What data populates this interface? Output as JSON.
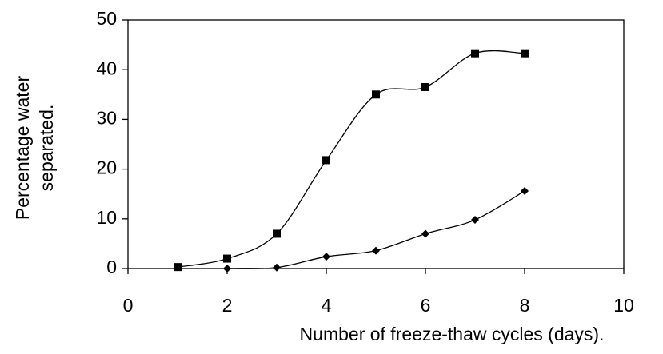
{
  "chart_data": {
    "type": "line",
    "xlabel": "Number of freeze-thaw cycles (days).",
    "ylabel": [
      "Percentage water",
      "separated."
    ],
    "x": [
      1,
      2,
      3,
      4,
      5,
      6,
      7,
      8
    ],
    "series": [
      {
        "marker": "square",
        "color": "#000000",
        "values": [
          0.3,
          2,
          7,
          21.8,
          35,
          36.5,
          43.3,
          43.3
        ]
      },
      {
        "marker": "diamond",
        "color": "#000000",
        "values": [
          null,
          0,
          0.2,
          2.4,
          3.6,
          7,
          9.8,
          15.6
        ]
      }
    ],
    "xlim": [
      0,
      10
    ],
    "xticks": [
      0,
      2,
      4,
      6,
      8,
      10
    ],
    "ylim": [
      0,
      50
    ],
    "yticks": [
      0,
      10,
      20,
      30,
      40,
      50
    ],
    "grid": false
  }
}
